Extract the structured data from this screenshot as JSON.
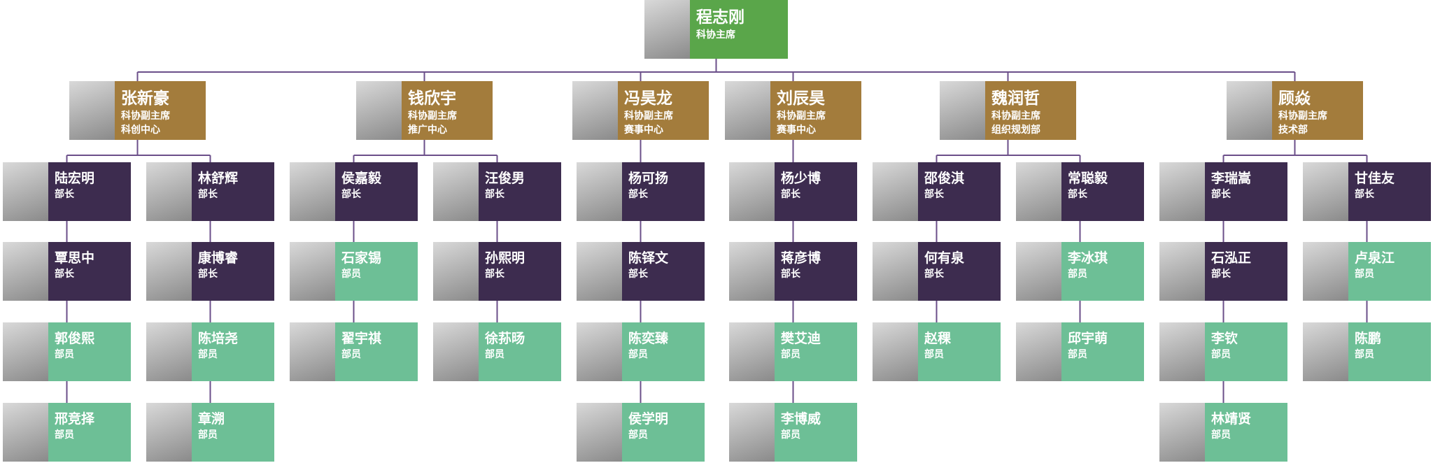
{
  "root": {
    "name": "程志刚",
    "title": "科协主席"
  },
  "vice_chairs": [
    {
      "name": "张新豪",
      "title": "科协副主席",
      "dept": "科创中心",
      "columns": [
        [
          {
            "name": "陆宏明",
            "role": "部长"
          },
          {
            "name": "覃思中",
            "role": "部长"
          },
          {
            "name": "郭俊熙",
            "role": "部员"
          },
          {
            "name": "邢竞择",
            "role": "部员"
          }
        ],
        [
          {
            "name": "林舒辉",
            "role": "部长"
          },
          {
            "name": "康博睿",
            "role": "部长"
          },
          {
            "name": "陈培尧",
            "role": "部员"
          },
          {
            "name": "章溯",
            "role": "部员"
          }
        ]
      ]
    },
    {
      "name": "钱欣宇",
      "title": "科协副主席",
      "dept": "推广中心",
      "columns": [
        [
          {
            "name": "侯嘉毅",
            "role": "部长"
          },
          {
            "name": "石家锡",
            "role": "部员"
          },
          {
            "name": "翟宇祺",
            "role": "部员"
          }
        ],
        [
          {
            "name": "汪俊男",
            "role": "部长"
          },
          {
            "name": "孙熙明",
            "role": "部长"
          },
          {
            "name": "徐荪旸",
            "role": "部员"
          }
        ]
      ]
    },
    {
      "name": "冯昊龙",
      "title": "科协副主席",
      "dept": "赛事中心",
      "columns": [
        [
          {
            "name": "杨可扬",
            "role": "部长"
          },
          {
            "name": "陈铎文",
            "role": "部长"
          },
          {
            "name": "陈奕臻",
            "role": "部员"
          },
          {
            "name": "侯学明",
            "role": "部员"
          }
        ]
      ]
    },
    {
      "name": "刘辰昊",
      "title": "科协副主席",
      "dept": "赛事中心",
      "columns": [
        [
          {
            "name": "杨少博",
            "role": "部长"
          },
          {
            "name": "蒋彦博",
            "role": "部长"
          },
          {
            "name": "樊艾迪",
            "role": "部员"
          },
          {
            "name": "李博威",
            "role": "部员"
          }
        ]
      ]
    },
    {
      "name": "魏润哲",
      "title": "科协副主席",
      "dept": "组织规划部",
      "columns": [
        [
          {
            "name": "邵俊淇",
            "role": "部长"
          },
          {
            "name": "何有泉",
            "role": "部长"
          },
          {
            "name": "赵稞",
            "role": "部员"
          }
        ],
        [
          {
            "name": "常聪毅",
            "role": "部长"
          },
          {
            "name": "李冰琪",
            "role": "部员"
          },
          {
            "name": "邱宇萌",
            "role": "部员"
          }
        ]
      ]
    },
    {
      "name": "顾焱",
      "title": "科协副主席",
      "dept": "技术部",
      "columns": [
        [
          {
            "name": "李瑞嵩",
            "role": "部长"
          },
          {
            "name": "石泓正",
            "role": "部长"
          },
          {
            "name": "李钦",
            "role": "部员"
          },
          {
            "name": "林靖贤",
            "role": "部员"
          }
        ],
        [
          {
            "name": "甘佳友",
            "role": "部长"
          },
          {
            "name": "卢泉江",
            "role": "部员"
          },
          {
            "name": "陈鹏",
            "role": "部员"
          }
        ]
      ]
    }
  ]
}
